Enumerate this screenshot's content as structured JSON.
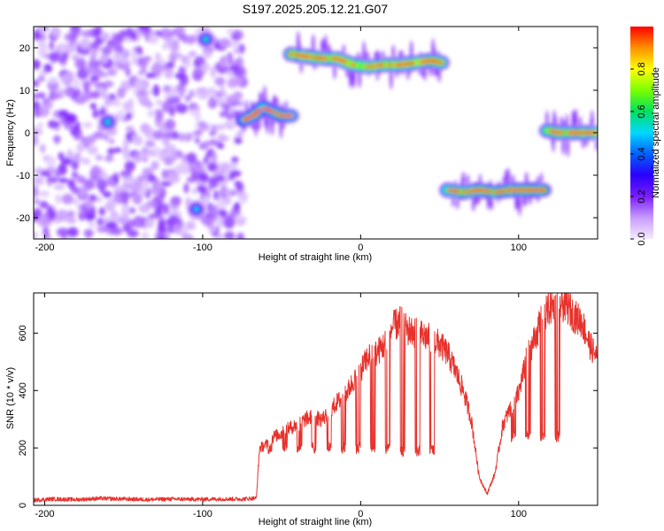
{
  "title": "S197.2025.205.12.21.G07",
  "chart_data": [
    {
      "type": "heatmap",
      "xlabel": "Height of straight line (km)",
      "ylabel": "Frequency (Hz)",
      "xlim": [
        -207,
        150
      ],
      "ylim": [
        -25,
        25
      ],
      "xticks": [
        -200,
        -100,
        0,
        100
      ],
      "yticks": [
        -20,
        -10,
        0,
        10,
        20
      ],
      "colorbar": {
        "label": "Normalized spectral amplitude",
        "range": [
          0.0,
          1.0
        ],
        "ticks": [
          0.0,
          0.2,
          0.4,
          0.6,
          0.8
        ],
        "tick_labels": [
          "0.0",
          "0.2",
          "0.4",
          "0.6",
          "0.8"
        ],
        "colormap": [
          "#f5ecff",
          "#c89bff",
          "#7a1cff",
          "#2b00ff",
          "#0060ff",
          "#00d8ff",
          "#00e060",
          "#7aff00",
          "#ffff00",
          "#ff9000",
          "#ff0000"
        ]
      },
      "noise_region": {
        "x": [
          -207,
          -74
        ],
        "y": [
          -25,
          25
        ],
        "amplitude": 0.15
      },
      "tracks": [
        {
          "x": [
            -74,
            -68,
            -62,
            -56,
            -50,
            -44
          ],
          "y": [
            3,
            4,
            6,
            5,
            4,
            4
          ],
          "amplitude": 0.7
        },
        {
          "x": [
            -44,
            -35,
            -25,
            -15,
            -5,
            5,
            15,
            25,
            35,
            45,
            51
          ],
          "y": [
            18.5,
            18,
            17.5,
            17.5,
            16,
            15.5,
            16,
            16,
            16.5,
            17,
            16.5
          ],
          "amplitude": 0.9
        },
        {
          "x": [
            55,
            65,
            75,
            85,
            95,
            105,
            116
          ],
          "y": [
            -13.5,
            -14,
            -13.5,
            -14,
            -13.5,
            -13.5,
            -13.5
          ],
          "amplitude": 0.8
        },
        {
          "x": [
            118,
            126,
            134,
            142,
            150
          ],
          "y": [
            0.5,
            0,
            0,
            0,
            0
          ],
          "amplitude": 0.85
        }
      ],
      "blobs": [
        {
          "x": -160,
          "y": 2.5,
          "amplitude": 0.55
        },
        {
          "x": -98,
          "y": 22,
          "amplitude": 0.55
        },
        {
          "x": -104,
          "y": -18,
          "amplitude": 0.5
        }
      ]
    },
    {
      "type": "line",
      "xlabel": "Height of straight line (km)",
      "ylabel": "SNR (10 * v/v)",
      "xlim": [
        -207,
        150
      ],
      "ylim": [
        0,
        740
      ],
      "xticks": [
        -200,
        -100,
        0,
        100
      ],
      "yticks": [
        0,
        200,
        400,
        600
      ],
      "color": "#e8322c",
      "x": [
        -207,
        -195,
        -180,
        -165,
        -150,
        -135,
        -120,
        -105,
        -90,
        -75,
        -66,
        -64,
        -60,
        -55,
        -50,
        -45,
        -40,
        -35,
        -30,
        -25,
        -20,
        -15,
        -10,
        -5,
        0,
        5,
        10,
        15,
        20,
        25,
        30,
        35,
        40,
        45,
        50,
        55,
        60,
        65,
        70,
        75,
        80,
        85,
        90,
        95,
        100,
        105,
        110,
        115,
        120,
        125,
        130,
        135,
        140,
        145,
        150
      ],
      "y": [
        18,
        22,
        20,
        24,
        22,
        20,
        22,
        21,
        22,
        22,
        25,
        200,
        210,
        240,
        250,
        270,
        280,
        300,
        310,
        300,
        320,
        360,
        380,
        430,
        470,
        520,
        530,
        560,
        620,
        640,
        610,
        600,
        590,
        580,
        560,
        530,
        470,
        400,
        300,
        100,
        40,
        110,
        280,
        340,
        390,
        510,
        580,
        650,
        690,
        700,
        700,
        660,
        640,
        560,
        510
      ],
      "drops": [
        {
          "x": [
            -62,
            20
          ],
          "y": 200
        },
        {
          "x": [
            22,
            50
          ],
          "y": 190
        },
        {
          "x": [
            92,
            130
          ],
          "y": 240
        }
      ]
    }
  ]
}
